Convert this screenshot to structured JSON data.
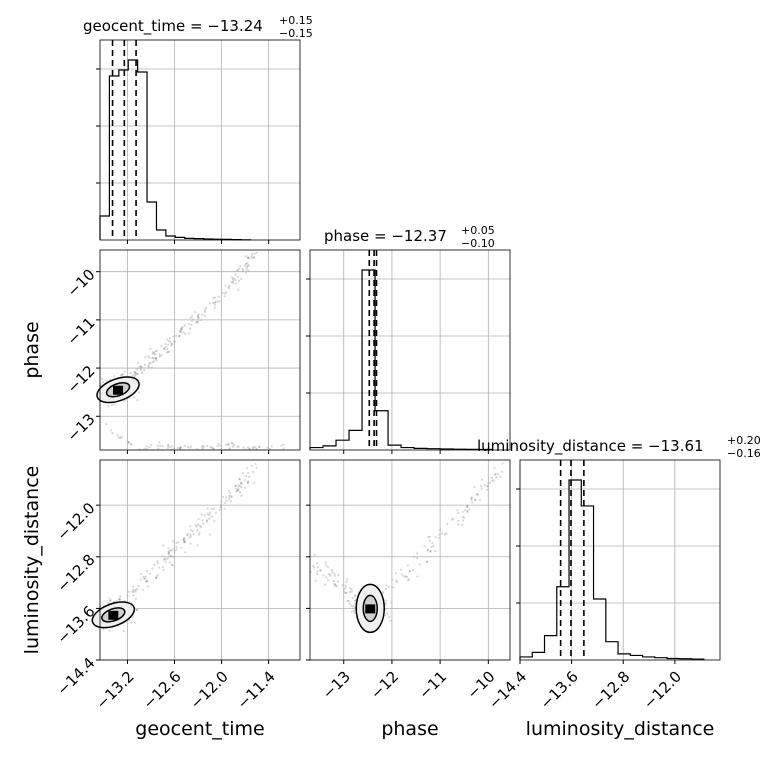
{
  "chart_data": {
    "type": "corner",
    "parameters": [
      "geocent_time",
      "phase",
      "luminosity_distance"
    ],
    "titles": [
      {
        "param": "geocent_time",
        "label": "geocent_time = −13.24",
        "plus": "+0.15",
        "minus": "−0.15"
      },
      {
        "param": "phase",
        "label": "phase = −12.37",
        "plus": "+0.05",
        "minus": "−0.10"
      },
      {
        "param": "luminosity_distance",
        "label": "luminosity_distance = −13.61",
        "plus": "+0.20",
        "minus": "−0.16"
      }
    ],
    "axis_labels": {
      "x": [
        "geocent_time",
        "phase",
        "luminosity_distance"
      ],
      "y": [
        "phase",
        "luminosity_distance"
      ]
    },
    "ranges": {
      "geocent_time": [
        -13.55,
        -11.0
      ],
      "phase": [
        -13.7,
        -9.55
      ],
      "luminosity_distance": [
        -14.4,
        -11.3
      ]
    },
    "ticks": {
      "geocent_time": {
        "values": [
          -13.2,
          -12.6,
          -12.0,
          -11.4
        ],
        "labels": [
          "−13.2",
          "−12.6",
          "−12.0",
          "−11.4"
        ]
      },
      "phase": {
        "values": [
          -13,
          -12,
          -11,
          -10
        ],
        "labels": [
          "−13",
          "−12",
          "−11",
          "−10"
        ]
      },
      "luminosity_distance": {
        "values": [
          -14.4,
          -13.6,
          -12.8,
          -12.0
        ],
        "labels": [
          "−14.4",
          "−13.6",
          "−12.8",
          "−12.0"
        ]
      }
    },
    "quantiles": {
      "geocent_time": [
        -13.39,
        -13.24,
        -13.09
      ],
      "phase": [
        -12.47,
        -12.37,
        -12.32
      ],
      "luminosity_distance": [
        -13.77,
        -13.61,
        -13.41
      ]
    },
    "histograms": {
      "geocent_time": {
        "edges": [
          -13.55,
          -13.43,
          -13.31,
          -13.19,
          -13.07,
          -12.95,
          -12.83,
          -12.71,
          -12.59,
          -12.47,
          -12.35,
          -12.23,
          -12.11,
          -11.99,
          -11.87,
          -11.75,
          -11.63
        ],
        "counts": [
          12,
          82,
          85,
          90,
          84,
          19,
          5,
          2,
          1.3,
          0.8,
          0.7,
          0.5,
          0.4,
          0.3,
          0.2,
          0.1
        ]
      },
      "phase": {
        "edges": [
          -13.7,
          -13.43,
          -13.16,
          -12.89,
          -12.62,
          -12.35,
          -12.08,
          -11.81,
          -11.54,
          -11.27,
          -11.0,
          -10.73,
          -10.46,
          -10.19,
          -9.92
        ],
        "counts": [
          1.5,
          2.5,
          6,
          12,
          110,
          24,
          3,
          1.5,
          1,
          0.8,
          0.6,
          0.5,
          0.4,
          0.3
        ]
      },
      "luminosity_distance": {
        "edges": [
          -14.4,
          -14.21,
          -14.02,
          -13.83,
          -13.64,
          -13.45,
          -13.26,
          -13.07,
          -12.88,
          -12.69,
          -12.5,
          -12.31,
          -12.12,
          -11.93,
          -11.74,
          -11.55
        ],
        "counts": [
          2,
          5,
          16,
          48,
          118,
          101,
          40,
          12,
          4,
          3,
          2,
          1.5,
          1,
          0.8,
          0.6
        ]
      }
    },
    "scatter_trend": {
      "phase_vs_geocent_time": {
        "x": [
          -13.55,
          -13.2,
          -12.6,
          -12.0,
          -11.55
        ],
        "y": [
          -12.45,
          -12.25,
          -11.4,
          -10.5,
          -9.6
        ]
      },
      "luminosity_distance_vs_geocent_time": {
        "x": [
          -13.55,
          -13.2,
          -12.6,
          -12.0,
          -11.55
        ],
        "y": [
          -13.7,
          -13.45,
          -12.7,
          -12.0,
          -11.4
        ]
      },
      "luminosity_distance_vs_phase": {
        "x": [
          -13.7,
          -12.4,
          -11.0,
          -9.7
        ],
        "y": [
          -12.9,
          -13.6,
          -12.5,
          -11.45
        ]
      }
    },
    "peaks": {
      "phase_vs_geocent_time": {
        "x": -13.32,
        "y": -12.45
      },
      "luminosity_distance_vs_geocent_time": {
        "x": -13.38,
        "y": -13.7
      },
      "luminosity_distance_vs_phase": {
        "x": -12.45,
        "y": -13.6
      }
    },
    "grid": true
  }
}
